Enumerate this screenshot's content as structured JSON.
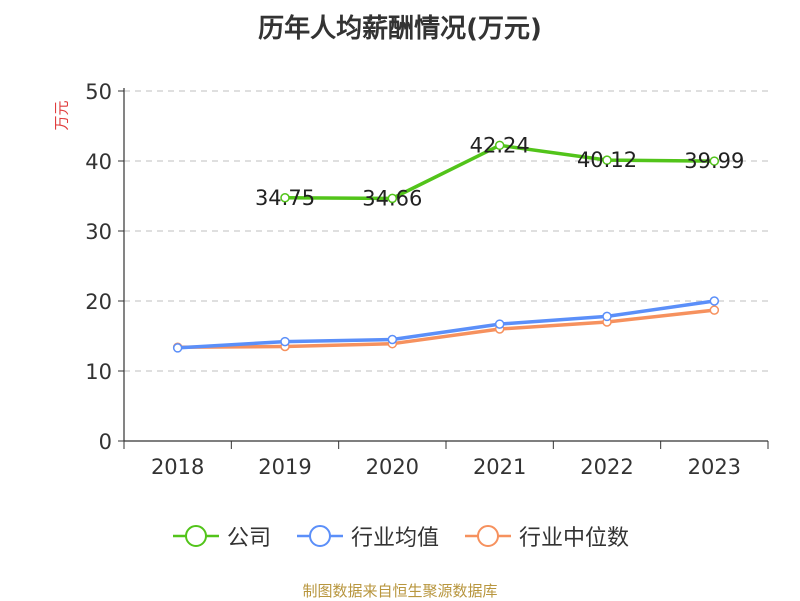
{
  "chart_data": {
    "type": "line",
    "title": "历年人均薪酬情况(万元)",
    "ylabel": "万元",
    "xlabel": "",
    "ylim": [
      0,
      50
    ],
    "yticks": [
      0,
      10,
      20,
      30,
      40,
      50
    ],
    "grid": true,
    "legend_position": "bottom",
    "categories": [
      "2018",
      "2019",
      "2020",
      "2021",
      "2022",
      "2023"
    ],
    "series": [
      {
        "name": "公司",
        "color": "#52c41a",
        "values": [
          null,
          34.75,
          34.66,
          42.24,
          40.12,
          39.99
        ],
        "labels": [
          "",
          "34.75",
          "34.66",
          "42.24",
          "40.12",
          "39.99"
        ]
      },
      {
        "name": "行业均值",
        "color": "#5b8ff9",
        "values": [
          13.3,
          14.2,
          14.5,
          16.7,
          17.8,
          20.0
        ]
      },
      {
        "name": "行业中位数",
        "color": "#f6915e",
        "values": [
          13.4,
          13.5,
          13.9,
          16.0,
          17.0,
          18.7
        ]
      }
    ]
  },
  "source": "制图数据来自恒生聚源数据库"
}
